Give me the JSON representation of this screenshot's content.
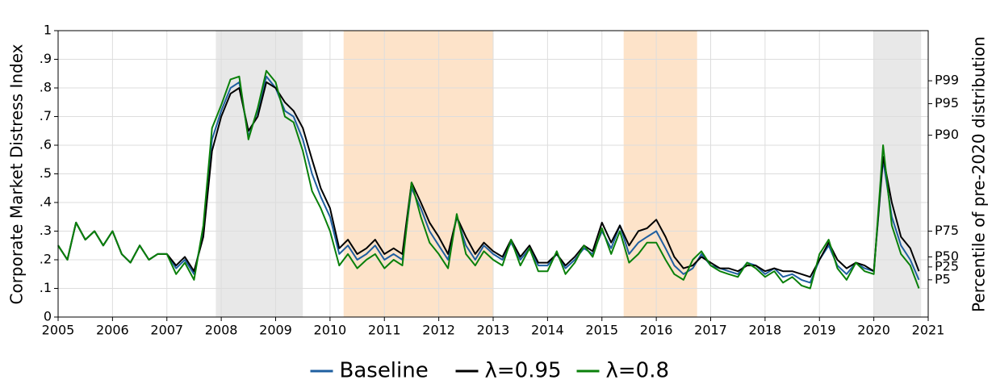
{
  "chart_data": {
    "type": "line",
    "ylabel": "Corporate Market Distress Index",
    "y2label": "Percentile of pre-2020 distribution",
    "xlim": [
      2005,
      2021
    ],
    "xticks": [
      2005,
      2006,
      2007,
      2008,
      2009,
      2010,
      2011,
      2012,
      2013,
      2014,
      2015,
      2016,
      2017,
      2018,
      2019,
      2020,
      2021
    ],
    "ylim": [
      0,
      1
    ],
    "yticks": [
      0,
      {
        "value": 0.1,
        "label": ".1"
      },
      {
        "value": 0.2,
        "label": ".2"
      },
      {
        "value": 0.3,
        "label": ".3"
      },
      {
        "value": 0.4,
        "label": ".4"
      },
      {
        "value": 0.5,
        "label": ".5"
      },
      {
        "value": 0.6,
        "label": ".6"
      },
      {
        "value": 0.7,
        "label": ".7"
      },
      {
        "value": 0.8,
        "label": ".8"
      },
      {
        "value": 0.9,
        "label": ".9"
      },
      1
    ],
    "y2lim": [
      0,
      1
    ],
    "y2ticks": [
      {
        "value": 0.13,
        "label": "P5"
      },
      {
        "value": 0.175,
        "label": "P25"
      },
      {
        "value": 0.21,
        "label": "P50"
      },
      {
        "value": 0.3,
        "label": "P75"
      },
      {
        "value": 0.635,
        "label": "P90"
      },
      {
        "value": 0.745,
        "label": "P95"
      },
      {
        "value": 0.825,
        "label": "P99"
      }
    ],
    "grid": true,
    "legend": "bottom",
    "shaded": [
      {
        "x": [
          2007.9,
          2009.5
        ],
        "color": "#e8e8e8"
      },
      {
        "x": [
          2010.25,
          2013.0
        ],
        "color": "#fde3c9"
      },
      {
        "x": [
          2015.4,
          2016.75
        ],
        "color": "#fde3c9"
      },
      {
        "x": [
          2020.0,
          2020.87
        ],
        "color": "#e8e8e8"
      }
    ],
    "x": [
      2005.0,
      2005.17,
      2005.33,
      2005.5,
      2005.67,
      2005.83,
      2006.0,
      2006.17,
      2006.33,
      2006.5,
      2006.67,
      2006.83,
      2007.0,
      2007.17,
      2007.33,
      2007.5,
      2007.67,
      2007.83,
      2008.0,
      2008.17,
      2008.33,
      2008.5,
      2008.67,
      2008.83,
      2009.0,
      2009.17,
      2009.33,
      2009.5,
      2009.67,
      2009.83,
      2010.0,
      2010.17,
      2010.33,
      2010.5,
      2010.67,
      2010.83,
      2011.0,
      2011.17,
      2011.33,
      2011.5,
      2011.67,
      2011.83,
      2012.0,
      2012.17,
      2012.33,
      2012.5,
      2012.67,
      2012.83,
      2013.0,
      2013.17,
      2013.33,
      2013.5,
      2013.67,
      2013.83,
      2014.0,
      2014.17,
      2014.33,
      2014.5,
      2014.67,
      2014.83,
      2015.0,
      2015.17,
      2015.33,
      2015.5,
      2015.67,
      2015.83,
      2016.0,
      2016.17,
      2016.33,
      2016.5,
      2016.67,
      2016.83,
      2017.0,
      2017.17,
      2017.33,
      2017.5,
      2017.67,
      2017.83,
      2018.0,
      2018.17,
      2018.33,
      2018.5,
      2018.67,
      2018.83,
      2019.0,
      2019.17,
      2019.33,
      2019.5,
      2019.67,
      2019.83,
      2020.0,
      2020.17,
      2020.33,
      2020.5,
      2020.67,
      2020.83
    ],
    "series": [
      {
        "name": "Baseline",
        "color": "#1f5fa0",
        "values": [
          0.25,
          0.2,
          0.33,
          0.27,
          0.3,
          0.25,
          0.3,
          0.22,
          0.19,
          0.25,
          0.2,
          0.22,
          0.22,
          0.17,
          0.2,
          0.15,
          0.3,
          0.62,
          0.72,
          0.8,
          0.82,
          0.63,
          0.72,
          0.84,
          0.8,
          0.72,
          0.7,
          0.62,
          0.5,
          0.42,
          0.35,
          0.22,
          0.25,
          0.2,
          0.22,
          0.25,
          0.2,
          0.22,
          0.2,
          0.45,
          0.38,
          0.3,
          0.25,
          0.2,
          0.35,
          0.25,
          0.2,
          0.25,
          0.22,
          0.2,
          0.26,
          0.2,
          0.24,
          0.18,
          0.18,
          0.22,
          0.17,
          0.2,
          0.24,
          0.22,
          0.3,
          0.24,
          0.32,
          0.22,
          0.26,
          0.28,
          0.3,
          0.24,
          0.18,
          0.15,
          0.17,
          0.22,
          0.18,
          0.17,
          0.16,
          0.15,
          0.19,
          0.18,
          0.15,
          0.17,
          0.14,
          0.15,
          0.13,
          0.12,
          0.2,
          0.25,
          0.18,
          0.15,
          0.19,
          0.17,
          0.16,
          0.55,
          0.35,
          0.25,
          0.2,
          0.13
        ]
      },
      {
        "name": "λ=0.95",
        "color": "#000000",
        "values": [
          0.25,
          0.2,
          0.33,
          0.27,
          0.3,
          0.25,
          0.3,
          0.22,
          0.19,
          0.25,
          0.2,
          0.22,
          0.22,
          0.18,
          0.21,
          0.16,
          0.28,
          0.58,
          0.7,
          0.78,
          0.8,
          0.65,
          0.7,
          0.82,
          0.8,
          0.75,
          0.72,
          0.66,
          0.55,
          0.45,
          0.38,
          0.24,
          0.27,
          0.22,
          0.24,
          0.27,
          0.22,
          0.24,
          0.22,
          0.47,
          0.4,
          0.33,
          0.28,
          0.22,
          0.35,
          0.28,
          0.22,
          0.26,
          0.23,
          0.21,
          0.27,
          0.21,
          0.25,
          0.19,
          0.19,
          0.22,
          0.18,
          0.21,
          0.25,
          0.23,
          0.33,
          0.26,
          0.32,
          0.25,
          0.3,
          0.31,
          0.34,
          0.28,
          0.21,
          0.17,
          0.18,
          0.21,
          0.19,
          0.17,
          0.17,
          0.16,
          0.18,
          0.18,
          0.16,
          0.17,
          0.16,
          0.16,
          0.15,
          0.14,
          0.2,
          0.26,
          0.2,
          0.17,
          0.19,
          0.18,
          0.16,
          0.56,
          0.4,
          0.28,
          0.24,
          0.16
        ]
      },
      {
        "name": "λ=0.8",
        "color": "#0a800a",
        "values": [
          0.25,
          0.2,
          0.33,
          0.27,
          0.3,
          0.25,
          0.3,
          0.22,
          0.19,
          0.25,
          0.2,
          0.22,
          0.22,
          0.15,
          0.19,
          0.13,
          0.32,
          0.66,
          0.74,
          0.83,
          0.84,
          0.62,
          0.73,
          0.86,
          0.82,
          0.7,
          0.68,
          0.58,
          0.44,
          0.38,
          0.3,
          0.18,
          0.22,
          0.17,
          0.2,
          0.22,
          0.17,
          0.2,
          0.18,
          0.47,
          0.35,
          0.26,
          0.22,
          0.17,
          0.36,
          0.22,
          0.18,
          0.23,
          0.2,
          0.18,
          0.27,
          0.18,
          0.24,
          0.16,
          0.16,
          0.23,
          0.15,
          0.19,
          0.25,
          0.21,
          0.31,
          0.22,
          0.3,
          0.19,
          0.22,
          0.26,
          0.26,
          0.2,
          0.15,
          0.13,
          0.2,
          0.23,
          0.18,
          0.16,
          0.15,
          0.14,
          0.19,
          0.17,
          0.14,
          0.16,
          0.12,
          0.14,
          0.11,
          0.1,
          0.22,
          0.27,
          0.17,
          0.13,
          0.19,
          0.16,
          0.15,
          0.6,
          0.32,
          0.22,
          0.18,
          0.1
        ]
      }
    ]
  }
}
